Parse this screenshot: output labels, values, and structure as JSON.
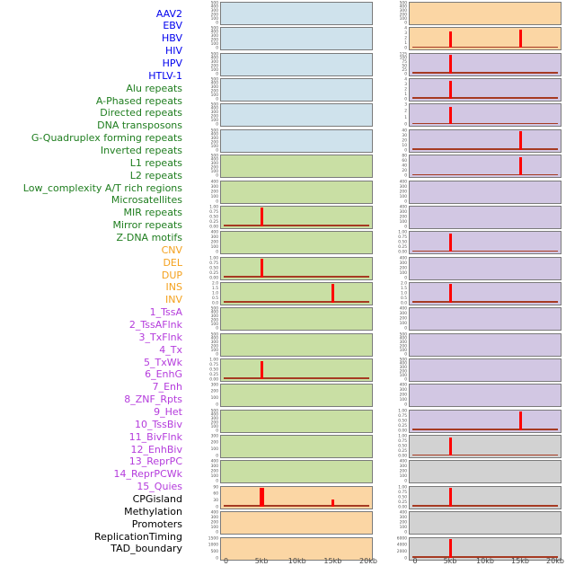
{
  "chart_data": {
    "type": "line",
    "subtype": "genomic-feature-track-grid",
    "title": "",
    "x_axis": {
      "tick_labels": [
        "0",
        "5kb",
        "10kb",
        "15kb",
        "20kb"
      ],
      "range_kb": [
        0,
        20
      ]
    },
    "colors": {
      "label_virus": "#0000EE",
      "label_repeat": "#1E7D1E",
      "label_sv": "#F4A11D",
      "label_chromatin": "#B43BDC",
      "label_other": "#000000",
      "bg_virus": "#cfe2ec",
      "bg_repeat": "#c9dfa4",
      "bg_sv": "#fbd6a4",
      "bg_chromatin": "#d2c7e3",
      "bg_other": "#d2d2d2",
      "marker": "#ff0000",
      "baseline": "#a63a22",
      "track_border": "#7a7a7a"
    },
    "columns": [
      {
        "tracks": [
          {
            "label": "AAV2",
            "group": "virus",
            "yticks": [
              "500",
              "400",
              "300",
              "200",
              "100",
              "0"
            ],
            "marks": []
          },
          {
            "label": "EBV",
            "group": "virus",
            "yticks": [
              "500",
              "400",
              "300",
              "200",
              "100",
              "0"
            ],
            "marks": []
          },
          {
            "label": "HBV",
            "group": "virus",
            "yticks": [
              "500",
              "400",
              "300",
              "200",
              "100",
              "0"
            ],
            "marks": []
          },
          {
            "label": "HIV",
            "group": "virus",
            "yticks": [
              "500",
              "400",
              "300",
              "200",
              "100",
              "0"
            ],
            "marks": []
          },
          {
            "label": "HPV",
            "group": "virus",
            "yticks": [
              "500",
              "400",
              "300",
              "200",
              "100",
              "0"
            ],
            "marks": []
          },
          {
            "label": "HTLV-1",
            "group": "virus",
            "yticks": [
              "500",
              "400",
              "300",
              "200",
              "100",
              "0"
            ],
            "marks": []
          },
          {
            "label": "Alu repeats",
            "group": "repeat",
            "yticks": [
              "500",
              "400",
              "300",
              "200",
              "100",
              "0"
            ],
            "marks": []
          },
          {
            "label": "A-Phased repeats",
            "group": "repeat",
            "yticks": [
              "400",
              "300",
              "200",
              "100",
              "0"
            ],
            "marks": []
          },
          {
            "label": "Directed repeats",
            "group": "repeat",
            "yticks": [
              "1.00",
              "0.75",
              "0.50",
              "0.25",
              "0.00"
            ],
            "marks": [
              {
                "kb": 5,
                "h": 1,
                "w": 3
              }
            ]
          },
          {
            "label": "DNA transposons",
            "group": "repeat",
            "yticks": [
              "400",
              "300",
              "200",
              "100",
              "0"
            ],
            "marks": []
          },
          {
            "label": "G-Quadruplex forming repeats",
            "group": "repeat",
            "yticks": [
              "1.00",
              "0.75",
              "0.50",
              "0.25",
              "0.00"
            ],
            "marks": [
              {
                "kb": 5,
                "h": 1,
                "w": 3
              }
            ]
          },
          {
            "label": "Inverted repeats",
            "group": "repeat",
            "yticks": [
              "2.0",
              "1.5",
              "1.0",
              "0.5",
              "0.0"
            ],
            "marks": [
              {
                "kb": 15,
                "h": 1,
                "w": 3
              }
            ]
          },
          {
            "label": "L1 repeats",
            "group": "repeat",
            "yticks": [
              "500",
              "400",
              "300",
              "200",
              "100",
              "0"
            ],
            "marks": []
          },
          {
            "label": "L2 repeats",
            "group": "repeat",
            "yticks": [
              "500",
              "400",
              "300",
              "200",
              "100",
              "0"
            ],
            "marks": []
          },
          {
            "label": "Low_complexity A/T rich regions",
            "group": "repeat",
            "yticks": [
              "1.00",
              "0.75",
              "0.50",
              "0.25",
              "0.00"
            ],
            "marks": [
              {
                "kb": 5,
                "h": 1,
                "w": 3
              }
            ]
          },
          {
            "label": "Microsatellites",
            "group": "repeat",
            "yticks": [
              "300",
              "200",
              "100",
              "0"
            ],
            "marks": []
          },
          {
            "label": "MIR repeats",
            "group": "repeat",
            "yticks": [
              "500",
              "400",
              "300",
              "200",
              "100",
              "0"
            ],
            "marks": []
          },
          {
            "label": "Mirror repeats",
            "group": "repeat",
            "yticks": [
              "300",
              "200",
              "100",
              "0"
            ],
            "marks": []
          },
          {
            "label": "Z-DNA motifs",
            "group": "repeat",
            "yticks": [
              "400",
              "300",
              "200",
              "100",
              "0"
            ],
            "marks": []
          },
          {
            "label": "CNV",
            "group": "sv",
            "yticks": [
              "90",
              "60",
              "30",
              "0"
            ],
            "marks": [
              {
                "kb": 5,
                "h": 1,
                "w": 5
              },
              {
                "kb": 15,
                "h": 0.4,
                "w": 3
              }
            ]
          },
          {
            "label": "DEL",
            "group": "sv",
            "yticks": [
              "400",
              "300",
              "200",
              "100",
              "0"
            ],
            "marks": []
          },
          {
            "label": "DUP",
            "group": "sv",
            "yticks": [
              "1500",
              "1000",
              "500",
              "0"
            ],
            "marks": []
          }
        ]
      },
      {
        "tracks": [
          {
            "label": "INS",
            "group": "sv",
            "yticks": [
              "500",
              "400",
              "300",
              "200",
              "100",
              "0"
            ],
            "marks": []
          },
          {
            "label": "INV",
            "group": "sv",
            "yticks": [
              "4",
              "3",
              "2",
              "1",
              "0"
            ],
            "marks": [
              {
                "kb": 5,
                "h": 0.9,
                "w": 3
              },
              {
                "kb": 15,
                "h": 1,
                "w": 3
              }
            ]
          },
          {
            "label": "1_TssA",
            "group": "chromatin",
            "yticks": [
              "125",
              "100",
              "75",
              "50",
              "25",
              "0"
            ],
            "marks": [
              {
                "kb": 5,
                "h": 1,
                "w": 3
              }
            ]
          },
          {
            "label": "2_TssAFlnk",
            "group": "chromatin",
            "yticks": [
              "4",
              "3",
              "2",
              "1",
              "0"
            ],
            "marks": [
              {
                "kb": 5,
                "h": 1,
                "w": 3
              }
            ]
          },
          {
            "label": "3_TxFlnk",
            "group": "chromatin",
            "yticks": [
              "3",
              "2",
              "1",
              "0"
            ],
            "marks": [
              {
                "kb": 5,
                "h": 0.95,
                "w": 3
              }
            ]
          },
          {
            "label": "4_Tx",
            "group": "chromatin",
            "yticks": [
              "40",
              "30",
              "20",
              "10",
              "0"
            ],
            "marks": [
              {
                "kb": 15,
                "h": 1,
                "w": 3
              }
            ]
          },
          {
            "label": "5_TxWk",
            "group": "chromatin",
            "yticks": [
              "80",
              "60",
              "40",
              "20",
              "0"
            ],
            "marks": [
              {
                "kb": 15,
                "h": 1,
                "w": 3
              }
            ]
          },
          {
            "label": "6_EnhG",
            "group": "chromatin",
            "yticks": [
              "400",
              "300",
              "200",
              "100",
              "0"
            ],
            "marks": []
          },
          {
            "label": "7_Enh",
            "group": "chromatin",
            "yticks": [
              "400",
              "300",
              "200",
              "100",
              "0"
            ],
            "marks": []
          },
          {
            "label": "8_ZNF_Rpts",
            "group": "chromatin",
            "yticks": [
              "1.00",
              "0.75",
              "0.50",
              "0.25",
              "0.00"
            ],
            "marks": [
              {
                "kb": 5,
                "h": 1,
                "w": 3
              }
            ]
          },
          {
            "label": "9_Het",
            "group": "chromatin",
            "yticks": [
              "400",
              "300",
              "200",
              "100",
              "0"
            ],
            "marks": []
          },
          {
            "label": "10_TssBiv",
            "group": "chromatin",
            "yticks": [
              "2.0",
              "1.5",
              "1.0",
              "0.5",
              "0.0"
            ],
            "marks": [
              {
                "kb": 5,
                "h": 1,
                "w": 3
              }
            ]
          },
          {
            "label": "11_BivFlnk",
            "group": "chromatin",
            "yticks": [
              "400",
              "300",
              "200",
              "100",
              "0"
            ],
            "marks": []
          },
          {
            "label": "12_EnhBiv",
            "group": "chromatin",
            "yticks": [
              "500",
              "400",
              "300",
              "200",
              "100",
              "0"
            ],
            "marks": []
          },
          {
            "label": "13_ReprPC",
            "group": "chromatin",
            "yticks": [
              "500",
              "400",
              "300",
              "200",
              "100",
              "0"
            ],
            "marks": []
          },
          {
            "label": "14_ReprPCWk",
            "group": "chromatin",
            "yticks": [
              "400",
              "300",
              "200",
              "100",
              "0"
            ],
            "marks": []
          },
          {
            "label": "15_Quies",
            "group": "chromatin",
            "yticks": [
              "1.00",
              "0.75",
              "0.50",
              "0.25",
              "0.00"
            ],
            "marks": [
              {
                "kb": 15,
                "h": 1,
                "w": 3
              }
            ]
          },
          {
            "label": "CPGisland",
            "group": "other",
            "yticks": [
              "1.00",
              "0.75",
              "0.50",
              "0.25",
              "0.00"
            ],
            "marks": [
              {
                "kb": 5,
                "h": 1,
                "w": 3
              }
            ]
          },
          {
            "label": "Methylation",
            "group": "other",
            "yticks": [
              "400",
              "300",
              "200",
              "100",
              "0"
            ],
            "marks": []
          },
          {
            "label": "Promoters",
            "group": "other",
            "yticks": [
              "1.00",
              "0.75",
              "0.50",
              "0.25",
              "0.00"
            ],
            "marks": [
              {
                "kb": 5,
                "h": 1,
                "w": 3
              }
            ]
          },
          {
            "label": "ReplicationTiming",
            "group": "other",
            "yticks": [
              "400",
              "300",
              "200",
              "100",
              "0"
            ],
            "marks": []
          },
          {
            "label": "TAD_boundary",
            "group": "other",
            "yticks": [
              "6000",
              "4000",
              "2000",
              "0"
            ],
            "marks": [
              {
                "kb": 5,
                "h": 1,
                "w": 3
              }
            ]
          }
        ]
      }
    ]
  }
}
